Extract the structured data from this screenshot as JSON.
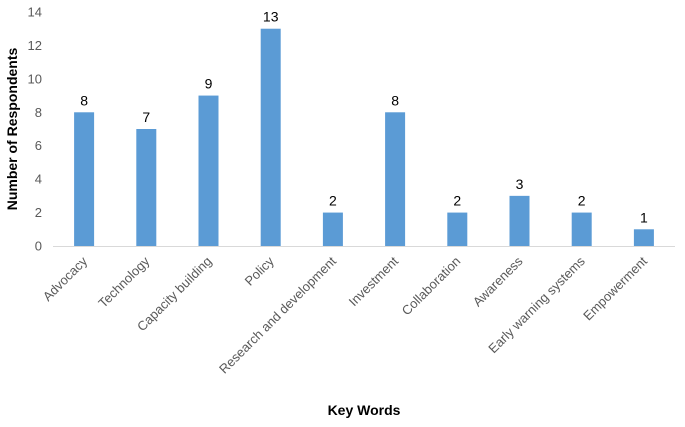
{
  "chart_data": {
    "type": "bar",
    "title": "",
    "xlabel": "Key Words",
    "ylabel": "Number of Respondents",
    "categories": [
      "Advocacy",
      "Technology",
      "Capacity building",
      "Policy",
      "Research and development",
      "Investment",
      "Collaboration",
      "Awareness",
      "Early warning systems",
      "Empowerment"
    ],
    "values": [
      8,
      7,
      9,
      13,
      2,
      8,
      2,
      3,
      2,
      1
    ],
    "ylim": [
      0,
      14
    ],
    "yticks": [
      0,
      2,
      4,
      6,
      8,
      10,
      12,
      14
    ],
    "grid": false,
    "legend": "none",
    "data_labels": true,
    "colors": {
      "bar": "#5b9bd5",
      "axis": "#d9d9d9",
      "tick_text": "#595959"
    }
  }
}
